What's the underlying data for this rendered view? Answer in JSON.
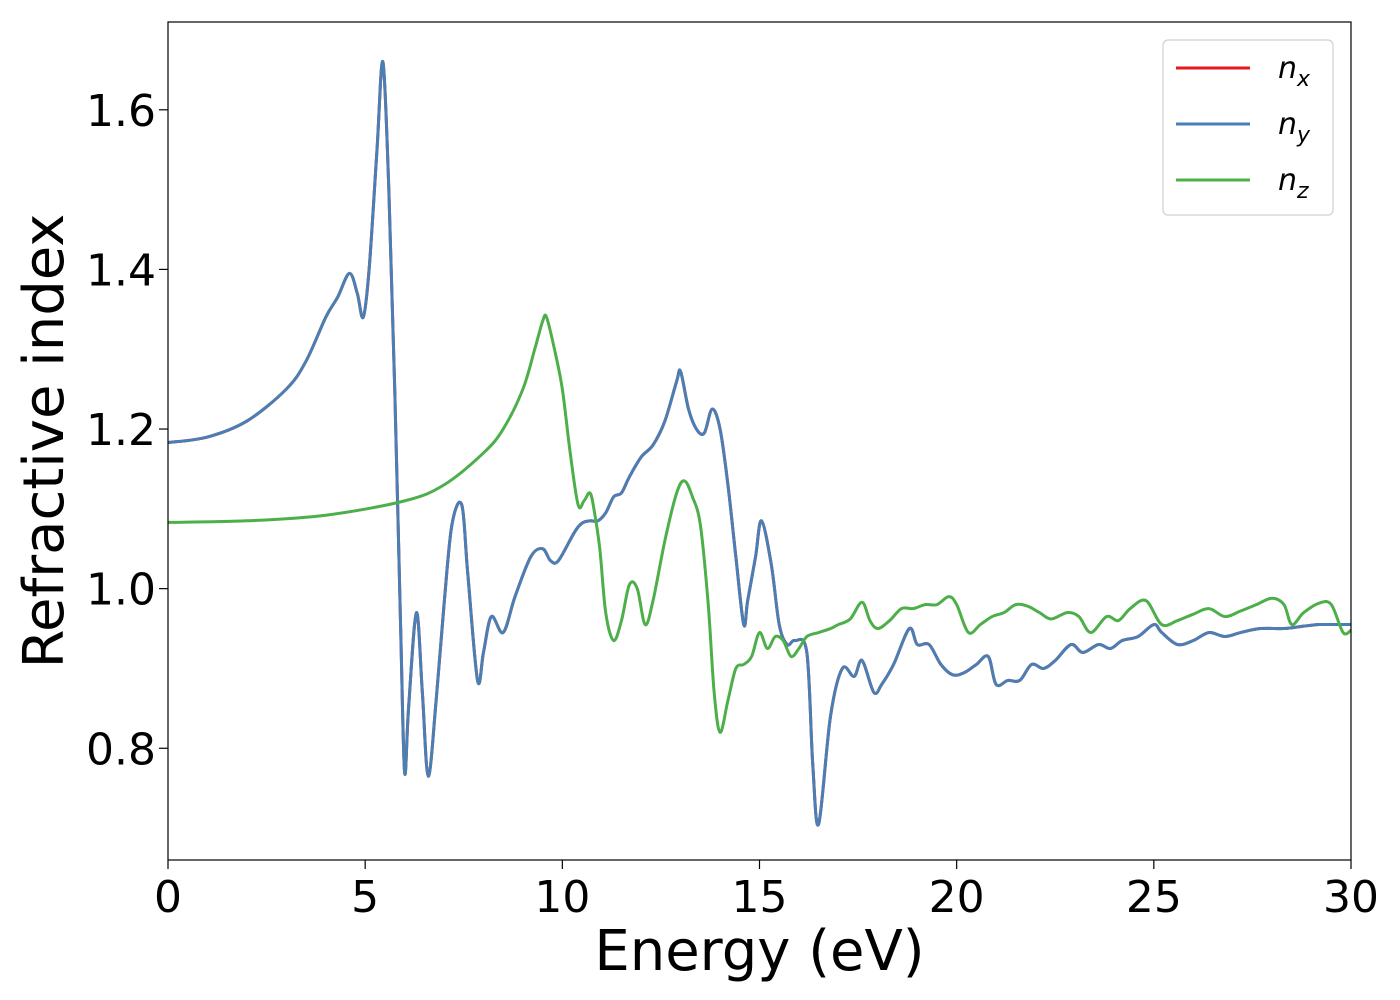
{
  "chart_data": {
    "type": "line",
    "title": "",
    "xlabel": "Energy (eV)",
    "ylabel": "Refractive index",
    "xlim": [
      0,
      30
    ],
    "ylim": [
      0.66,
      1.71
    ],
    "xticks": [
      0,
      5,
      10,
      15,
      20,
      25,
      30
    ],
    "yticks": [
      0.8,
      1.0,
      1.2,
      1.4,
      1.6
    ],
    "xtick_labels": [
      "0",
      "5",
      "10",
      "15",
      "20",
      "25",
      "30"
    ],
    "ytick_labels": [
      "0.8",
      "1.0",
      "1.2",
      "1.4",
      "1.6"
    ],
    "grid": false,
    "legend_position": "top-right",
    "series": [
      {
        "name": "n_x",
        "label_main": "n",
        "label_sub": "x",
        "color": "#e41a1c",
        "x": [
          0,
          1,
          2,
          3,
          3.5,
          4,
          4.3,
          4.6,
          4.8,
          4.95,
          5.1,
          5.3,
          5.45,
          5.6,
          5.75,
          5.9,
          6.0,
          6.1,
          6.3,
          6.45,
          6.6,
          6.8,
          7.0,
          7.2,
          7.45,
          7.6,
          7.85,
          8.0,
          8.2,
          8.5,
          8.8,
          9.2,
          9.5,
          9.7,
          9.9,
          10.3,
          10.5,
          10.7,
          10.9,
          11.1,
          11.3,
          11.5,
          11.7,
          12.0,
          12.3,
          12.6,
          12.9,
          13.0,
          13.2,
          13.4,
          13.6,
          13.8,
          14.0,
          14.2,
          14.4,
          14.6,
          14.7,
          14.9,
          15.05,
          15.3,
          15.5,
          15.7,
          15.9,
          16.2,
          16.35,
          16.5,
          16.8,
          17.1,
          17.4,
          17.6,
          17.9,
          18.1,
          18.4,
          18.8,
          19.0,
          19.3,
          19.6,
          19.9,
          20.2,
          20.5,
          20.8,
          21.0,
          21.3,
          21.6,
          21.9,
          22.2,
          22.5,
          22.9,
          23.2,
          23.6,
          23.9,
          24.2,
          24.6,
          25.0,
          25.2,
          25.6,
          26.0,
          26.4,
          26.8,
          27.2,
          27.7,
          28.3,
          28.8,
          29.2,
          29.6,
          30.0
        ],
        "y": [
          1.183,
          1.19,
          1.21,
          1.25,
          1.285,
          1.34,
          1.365,
          1.395,
          1.37,
          1.34,
          1.4,
          1.55,
          1.66,
          1.5,
          1.25,
          0.95,
          0.77,
          0.85,
          0.97,
          0.87,
          0.765,
          0.86,
          0.98,
          1.08,
          1.105,
          1.02,
          0.885,
          0.92,
          0.965,
          0.945,
          0.99,
          1.04,
          1.05,
          1.035,
          1.035,
          1.07,
          1.082,
          1.085,
          1.085,
          1.095,
          1.115,
          1.12,
          1.14,
          1.165,
          1.18,
          1.21,
          1.26,
          1.272,
          1.225,
          1.2,
          1.195,
          1.225,
          1.2,
          1.13,
          1.04,
          0.955,
          0.985,
          1.04,
          1.085,
          1.03,
          0.955,
          0.93,
          0.935,
          0.92,
          0.78,
          0.705,
          0.84,
          0.9,
          0.89,
          0.91,
          0.87,
          0.88,
          0.905,
          0.95,
          0.93,
          0.93,
          0.905,
          0.892,
          0.895,
          0.905,
          0.915,
          0.88,
          0.885,
          0.885,
          0.905,
          0.9,
          0.91,
          0.93,
          0.92,
          0.93,
          0.925,
          0.935,
          0.94,
          0.955,
          0.945,
          0.93,
          0.935,
          0.945,
          0.94,
          0.945,
          0.95,
          0.95,
          0.953,
          0.955,
          0.955,
          0.955
        ]
      },
      {
        "name": "n_y",
        "label_main": "n",
        "label_sub": "y",
        "color": "#4a7fb5",
        "x": [
          0,
          1,
          2,
          3,
          3.5,
          4,
          4.3,
          4.6,
          4.8,
          4.95,
          5.1,
          5.3,
          5.45,
          5.6,
          5.75,
          5.9,
          6.0,
          6.1,
          6.3,
          6.45,
          6.6,
          6.8,
          7.0,
          7.2,
          7.45,
          7.6,
          7.85,
          8.0,
          8.2,
          8.5,
          8.8,
          9.2,
          9.5,
          9.7,
          9.9,
          10.3,
          10.5,
          10.7,
          10.9,
          11.1,
          11.3,
          11.5,
          11.7,
          12.0,
          12.3,
          12.6,
          12.9,
          13.0,
          13.2,
          13.4,
          13.6,
          13.8,
          14.0,
          14.2,
          14.4,
          14.6,
          14.7,
          14.9,
          15.05,
          15.3,
          15.5,
          15.7,
          15.9,
          16.2,
          16.35,
          16.5,
          16.8,
          17.1,
          17.4,
          17.6,
          17.9,
          18.1,
          18.4,
          18.8,
          19.0,
          19.3,
          19.6,
          19.9,
          20.2,
          20.5,
          20.8,
          21.0,
          21.3,
          21.6,
          21.9,
          22.2,
          22.5,
          22.9,
          23.2,
          23.6,
          23.9,
          24.2,
          24.6,
          25.0,
          25.2,
          25.6,
          26.0,
          26.4,
          26.8,
          27.2,
          27.7,
          28.3,
          28.8,
          29.2,
          29.6,
          30.0
        ],
        "y": [
          1.183,
          1.19,
          1.21,
          1.25,
          1.285,
          1.34,
          1.365,
          1.395,
          1.37,
          1.34,
          1.4,
          1.55,
          1.66,
          1.5,
          1.25,
          0.95,
          0.77,
          0.85,
          0.97,
          0.87,
          0.765,
          0.86,
          0.98,
          1.08,
          1.105,
          1.02,
          0.885,
          0.92,
          0.965,
          0.945,
          0.99,
          1.04,
          1.05,
          1.035,
          1.035,
          1.07,
          1.082,
          1.085,
          1.085,
          1.095,
          1.115,
          1.12,
          1.14,
          1.165,
          1.18,
          1.21,
          1.26,
          1.272,
          1.225,
          1.2,
          1.195,
          1.225,
          1.2,
          1.13,
          1.04,
          0.955,
          0.985,
          1.04,
          1.085,
          1.03,
          0.955,
          0.93,
          0.935,
          0.92,
          0.78,
          0.705,
          0.84,
          0.9,
          0.89,
          0.91,
          0.87,
          0.88,
          0.905,
          0.95,
          0.93,
          0.93,
          0.905,
          0.892,
          0.895,
          0.905,
          0.915,
          0.88,
          0.885,
          0.885,
          0.905,
          0.9,
          0.91,
          0.93,
          0.92,
          0.93,
          0.925,
          0.935,
          0.94,
          0.955,
          0.945,
          0.93,
          0.935,
          0.945,
          0.94,
          0.945,
          0.95,
          0.95,
          0.953,
          0.955,
          0.955,
          0.955
        ]
      },
      {
        "name": "n_z",
        "label_main": "n",
        "label_sub": "z",
        "color": "#4daf4a",
        "x": [
          0,
          2,
          4,
          6,
          7,
          8,
          8.5,
          9.0,
          9.3,
          9.5,
          9.6,
          9.8,
          10.0,
          10.2,
          10.4,
          10.55,
          10.7,
          10.8,
          10.95,
          11.1,
          11.3,
          11.5,
          11.7,
          11.9,
          12.1,
          12.3,
          12.6,
          12.9,
          13.1,
          13.3,
          13.5,
          13.7,
          13.85,
          14.0,
          14.2,
          14.4,
          14.6,
          14.8,
          15.0,
          15.2,
          15.4,
          15.6,
          15.8,
          16.0,
          16.2,
          16.5,
          16.8,
          17.0,
          17.3,
          17.6,
          17.8,
          18.0,
          18.3,
          18.6,
          18.9,
          19.2,
          19.5,
          19.8,
          20.0,
          20.3,
          20.6,
          20.9,
          21.2,
          21.5,
          21.8,
          22.1,
          22.4,
          22.8,
          23.1,
          23.4,
          23.8,
          24.1,
          24.4,
          24.8,
          25.2,
          25.6,
          26.0,
          26.4,
          26.8,
          27.2,
          27.6,
          28.0,
          28.3,
          28.5,
          28.8,
          29.2,
          29.5,
          29.8,
          30.0
        ],
        "y": [
          1.083,
          1.085,
          1.092,
          1.11,
          1.13,
          1.17,
          1.2,
          1.25,
          1.3,
          1.335,
          1.34,
          1.3,
          1.25,
          1.17,
          1.105,
          1.11,
          1.12,
          1.1,
          1.05,
          0.97,
          0.935,
          0.96,
          1.005,
          1.0,
          0.955,
          0.985,
          1.06,
          1.12,
          1.135,
          1.115,
          1.08,
          0.98,
          0.87,
          0.82,
          0.86,
          0.9,
          0.905,
          0.915,
          0.945,
          0.925,
          0.94,
          0.935,
          0.915,
          0.925,
          0.94,
          0.945,
          0.95,
          0.955,
          0.962,
          0.983,
          0.96,
          0.95,
          0.96,
          0.975,
          0.975,
          0.98,
          0.98,
          0.99,
          0.98,
          0.945,
          0.955,
          0.965,
          0.97,
          0.98,
          0.978,
          0.97,
          0.962,
          0.97,
          0.965,
          0.945,
          0.965,
          0.96,
          0.975,
          0.985,
          0.955,
          0.96,
          0.968,
          0.975,
          0.965,
          0.972,
          0.98,
          0.988,
          0.98,
          0.955,
          0.97,
          0.982,
          0.98,
          0.945,
          0.948
        ]
      }
    ]
  }
}
